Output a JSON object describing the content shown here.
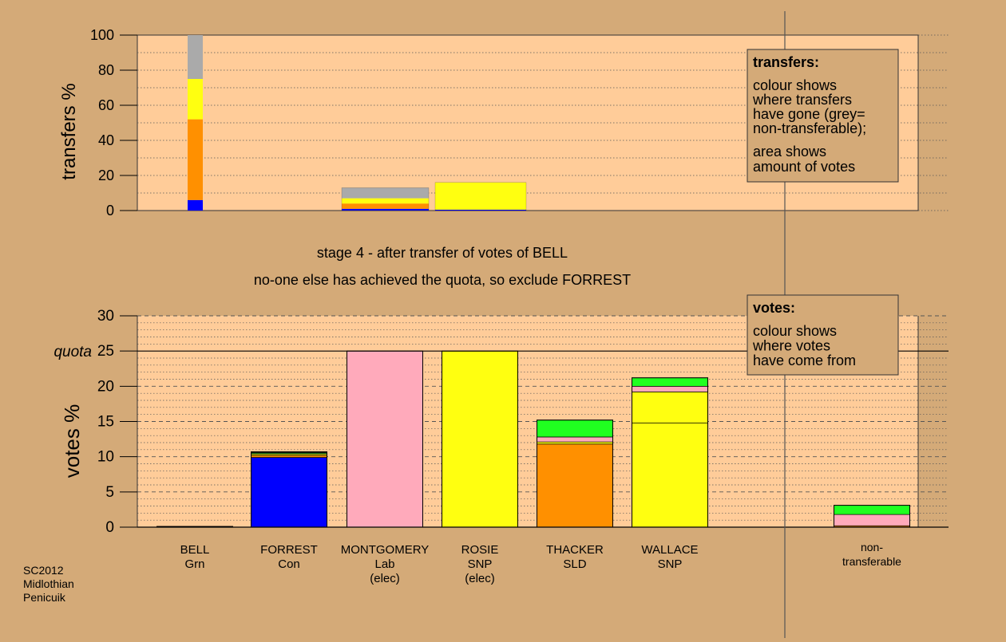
{
  "colors": {
    "background": "#D4AA78",
    "plot_bg": "#FFCC99",
    "blue": "#0000FF",
    "orange": "#FF9000",
    "yellow": "#FFFF10",
    "grey": "#AAAAAA",
    "green": "#20FF20",
    "pink": "#FFAABB",
    "dark_green": "#228B22"
  },
  "caption": {
    "line1": "stage 4 - after transfer of votes of BELL",
    "line2": "no-one else has achieved the quota, so exclude FORREST"
  },
  "footer": {
    "line1": "SC2012",
    "line2": "Midlothian",
    "line3": "Penicuik"
  },
  "chart_data": [
    {
      "type": "bar",
      "name": "transfers",
      "ylabel": "transfers %",
      "ylim": [
        0,
        100
      ],
      "yticks": [
        0,
        20,
        40,
        60,
        80,
        100
      ],
      "grid": "dotted",
      "legend": {
        "title": "transfers:",
        "lines1": [
          "colour shows",
          "where transfers",
          "have gone (grey=",
          "non-transferable);"
        ],
        "lines2": [
          "area shows",
          "amount of votes"
        ],
        "position": "top-right"
      },
      "bars": [
        {
          "id": "bell",
          "segments": [
            {
              "color": "#0000FF",
              "value": 6
            },
            {
              "color": "#FF9000",
              "value": 46
            },
            {
              "color": "#FFFF10",
              "value": 23
            },
            {
              "color": "#AAAAAA",
              "value": 25
            }
          ]
        },
        {
          "id": "group2",
          "segments": [
            {
              "color": "#0000FF",
              "value": 1
            },
            {
              "color": "#FF9000",
              "value": 3
            },
            {
              "color": "#FFFF10",
              "value": 3
            },
            {
              "color": "#AAAAAA",
              "value": 6
            }
          ]
        },
        {
          "id": "group3",
          "segments": [
            {
              "color": "#0000FF",
              "value": 0.5
            },
            {
              "color": "#FFFF10",
              "value": 15.5
            }
          ]
        }
      ]
    },
    {
      "type": "bar",
      "name": "votes",
      "ylabel": "votes %",
      "ylim": [
        0,
        30
      ],
      "yticks": [
        0,
        5,
        10,
        15,
        20,
        25,
        30
      ],
      "quota": 25,
      "quota_label": "quota",
      "grid": "dashed",
      "legend": {
        "title": "votes:",
        "lines": [
          "colour shows",
          "where votes",
          "have come from"
        ],
        "position": "top-right"
      },
      "candidates": [
        {
          "name": "BELL",
          "party": "Grn",
          "status": "",
          "segments": [
            {
              "color": "#20FF20",
              "value": 0.1
            }
          ]
        },
        {
          "name": "FORREST",
          "party": "Con",
          "status": "",
          "segments": [
            {
              "color": "#0000FF",
              "value": 9.9
            },
            {
              "color": "#FF9000",
              "value": 0.3
            },
            {
              "color": "#FFFF10",
              "value": 0.2
            },
            {
              "color": "#228B22",
              "value": 0.2
            },
            {
              "color": "#20FF20",
              "value": 0.1
            }
          ]
        },
        {
          "name": "MONTGOMERY",
          "party": "Lab",
          "status": "(elec)",
          "segments": [
            {
              "color": "#FFAABB",
              "value": 25
            }
          ]
        },
        {
          "name": "ROSIE",
          "party": "SNP",
          "status": "(elec)",
          "segments": [
            {
              "color": "#FFFF10",
              "value": 25
            }
          ]
        },
        {
          "name": "THACKER",
          "party": "SLD",
          "status": "",
          "segments": [
            {
              "color": "#FF9000",
              "value": 11.8
            },
            {
              "color": "#FFFF10",
              "value": 0.3
            },
            {
              "color": "#FFAABB",
              "value": 0.7
            },
            {
              "color": "#20FF20",
              "value": 2.4
            }
          ]
        },
        {
          "name": "WALLACE",
          "party": "SNP",
          "status": "",
          "segments": [
            {
              "color": "#FFFF10",
              "value": 14.8
            },
            {
              "color": "#FFFF10",
              "value": 4.4
            },
            {
              "color": "#FFAABB",
              "value": 0.8
            },
            {
              "color": "#20FF20",
              "value": 1.2
            }
          ]
        },
        {
          "name": "non-",
          "party": "transferable",
          "status": "",
          "segments": [
            {
              "color": "#FF9000",
              "value": 0.2
            },
            {
              "color": "#FFAABB",
              "value": 1.6
            },
            {
              "color": "#20FF20",
              "value": 1.3
            }
          ]
        }
      ]
    }
  ]
}
